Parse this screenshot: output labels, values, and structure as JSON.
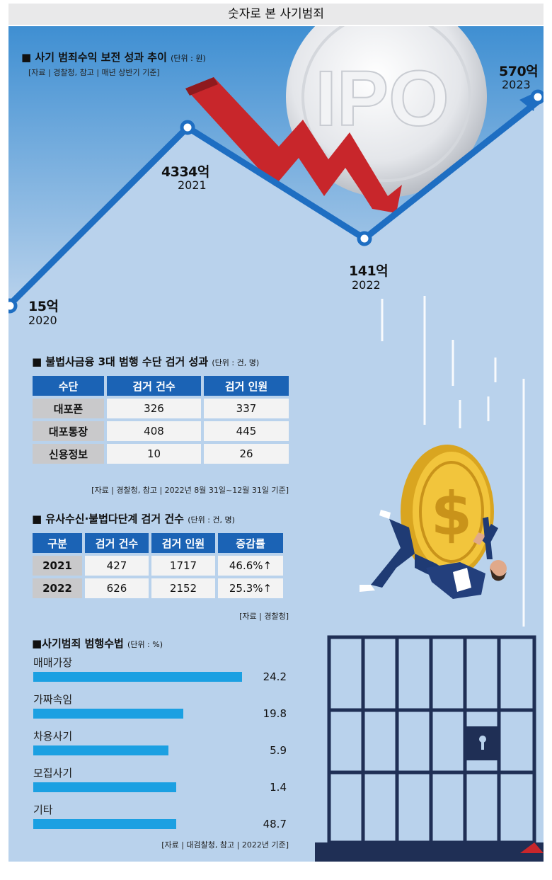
{
  "page_title": "숫자로 본 사기범죄",
  "sections": {
    "profit": {
      "title": "■ 사기 범죄수익 보전 성과 추이",
      "unit": "(단위 : 원)",
      "source": "[자료 | 경찰청, 참고 | 매년 상반기 기준]"
    },
    "methods": {
      "title": "■ 불법사금융 3대 범행 수단 검거 성과",
      "unit": "(단위 : 건, 명)",
      "headers": [
        "수단",
        "검거 건수",
        "검거 인원"
      ],
      "rows": [
        [
          "대포폰",
          "326",
          "337"
        ],
        [
          "대포통장",
          "408",
          "445"
        ],
        [
          "신용정보",
          "10",
          "26"
        ]
      ],
      "source": "[자료 | 경찰청, 참고 | 2022년 8월 31일~12월 31일 기준]"
    },
    "deposit": {
      "title": "■ 유사수신·불법다단계 검거 건수",
      "unit": "(단위 : 건, 명)",
      "headers": [
        "구분",
        "검거 건수",
        "검거 인원",
        "증감률"
      ],
      "rows": [
        [
          "2021",
          "427",
          "1717",
          "46.6%↑"
        ],
        [
          "2022",
          "626",
          "2152",
          "25.3%↑"
        ]
      ],
      "source": "[자료 | 경찰청]"
    },
    "crime_type": {
      "title": "■사기범죄 범행수법",
      "unit": "(단위 : %)",
      "source": "[자료 | 대검찰청, 참고 | 2022년 기준]"
    }
  },
  "illustration": {
    "coin_label": "IPO",
    "dollar_sign": "$"
  },
  "colors": {
    "panel_bg": "#b9d2ec",
    "sky_bg": "#4a96d3",
    "line": "#1e6ec2",
    "table_header": "#1b63b5",
    "bar": "#1ba0e2",
    "arrow_red": "#c8262b"
  },
  "chart_data": [
    {
      "type": "line",
      "x": [
        "2020",
        "2021",
        "2022",
        "2023"
      ],
      "values": [
        15,
        4334,
        141,
        570
      ],
      "value_labels": [
        "15억",
        "4334억",
        "141억",
        "570억"
      ],
      "title": "사기 범죄수익 보전 성과 추이"
    },
    {
      "type": "bar",
      "title": "사기범죄 범행수법",
      "categories": [
        "매매가장",
        "가짜속임",
        "차용사기",
        "모집사기",
        "기타"
      ],
      "values": [
        24.2,
        19.8,
        5.9,
        1.4,
        48.7
      ],
      "value_labels": [
        "24.2",
        "19.8",
        "5.9",
        "1.4",
        "48.7"
      ],
      "bar_fill_fraction": [
        0.82,
        0.59,
        0.53,
        0.56,
        0.56
      ]
    }
  ]
}
